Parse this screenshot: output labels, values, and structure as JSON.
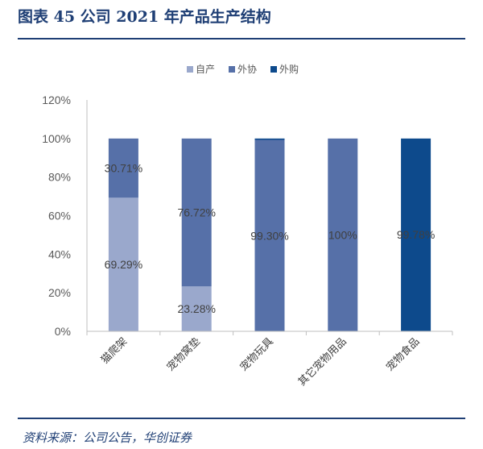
{
  "figure_title": "图表 45 公司 2021 年产品生产结构",
  "source_note": "资料来源：公司公告，华创证券",
  "chart_data": {
    "type": "bar",
    "stacked": true,
    "categories": [
      "猫爬架",
      "宠物窝垫",
      "宠物玩具",
      "其它宠物用品",
      "宠物食品"
    ],
    "series": [
      {
        "name": "自产",
        "color": "#9aa8cc",
        "values": [
          69.29,
          23.28,
          0,
          0,
          0
        ]
      },
      {
        "name": "外协",
        "color": "#5670a8",
        "values": [
          30.71,
          76.72,
          99.3,
          100,
          0.22
        ]
      },
      {
        "name": "外购",
        "color": "#0d4a8c",
        "values": [
          0,
          0,
          0.7,
          0,
          99.78
        ]
      }
    ],
    "data_labels": [
      {
        "category": "猫爬架",
        "series": "外协",
        "text": "30.71%"
      },
      {
        "category": "猫爬架",
        "series": "自产",
        "text": "69.29%"
      },
      {
        "category": "宠物窝垫",
        "series": "外协",
        "text": "76.72%"
      },
      {
        "category": "宠物窝垫",
        "series": "自产",
        "text": "23.28%"
      },
      {
        "category": "宠物玩具",
        "series": "外协",
        "text": "99.30%"
      },
      {
        "category": "其它宠物用品",
        "series": "外协",
        "text": "100%"
      },
      {
        "category": "宠物食品",
        "series": "外购",
        "text": "99.78%"
      }
    ],
    "yticks": [
      "0%",
      "20%",
      "40%",
      "60%",
      "80%",
      "100%",
      "120%"
    ],
    "ylim": [
      0,
      120
    ],
    "legend_position": "top",
    "grid": false
  }
}
